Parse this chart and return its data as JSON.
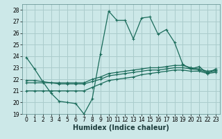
{
  "title": "",
  "xlabel": "Humidex (Indice chaleur)",
  "ylabel": "",
  "bg_color": "#cce8e8",
  "grid_color": "#aacccc",
  "line_color": "#1a6b5a",
  "xlim": [
    -0.5,
    23.5
  ],
  "ylim": [
    19,
    28.5
  ],
  "yticks": [
    19,
    20,
    21,
    22,
    23,
    24,
    25,
    26,
    27,
    28
  ],
  "xticks": [
    0,
    1,
    2,
    3,
    4,
    5,
    6,
    7,
    8,
    9,
    10,
    11,
    12,
    13,
    14,
    15,
    16,
    17,
    18,
    19,
    20,
    21,
    22,
    23
  ],
  "main_line": [
    23.9,
    22.9,
    21.8,
    20.8,
    20.1,
    20.0,
    19.9,
    19.0,
    20.3,
    24.2,
    27.9,
    27.1,
    27.1,
    25.5,
    27.3,
    27.4,
    25.9,
    26.3,
    25.2,
    23.3,
    22.9,
    23.1,
    22.5,
    22.9
  ],
  "line2": [
    21.9,
    21.9,
    21.8,
    21.7,
    21.7,
    21.7,
    21.7,
    21.7,
    22.0,
    22.2,
    22.5,
    22.6,
    22.7,
    22.8,
    22.9,
    23.0,
    23.0,
    23.1,
    23.2,
    23.2,
    23.0,
    22.9,
    22.7,
    22.8
  ],
  "line3": [
    21.7,
    21.7,
    21.7,
    21.7,
    21.6,
    21.6,
    21.6,
    21.6,
    21.8,
    22.0,
    22.3,
    22.4,
    22.5,
    22.6,
    22.7,
    22.8,
    22.8,
    22.9,
    23.0,
    23.0,
    22.9,
    22.8,
    22.6,
    22.7
  ],
  "line4": [
    21.0,
    21.0,
    21.0,
    21.0,
    21.0,
    21.0,
    21.0,
    21.0,
    21.3,
    21.6,
    21.9,
    22.0,
    22.1,
    22.2,
    22.4,
    22.5,
    22.6,
    22.7,
    22.8,
    22.8,
    22.7,
    22.7,
    22.5,
    22.6
  ],
  "tick_fontsize": 5.5,
  "xlabel_fontsize": 7
}
